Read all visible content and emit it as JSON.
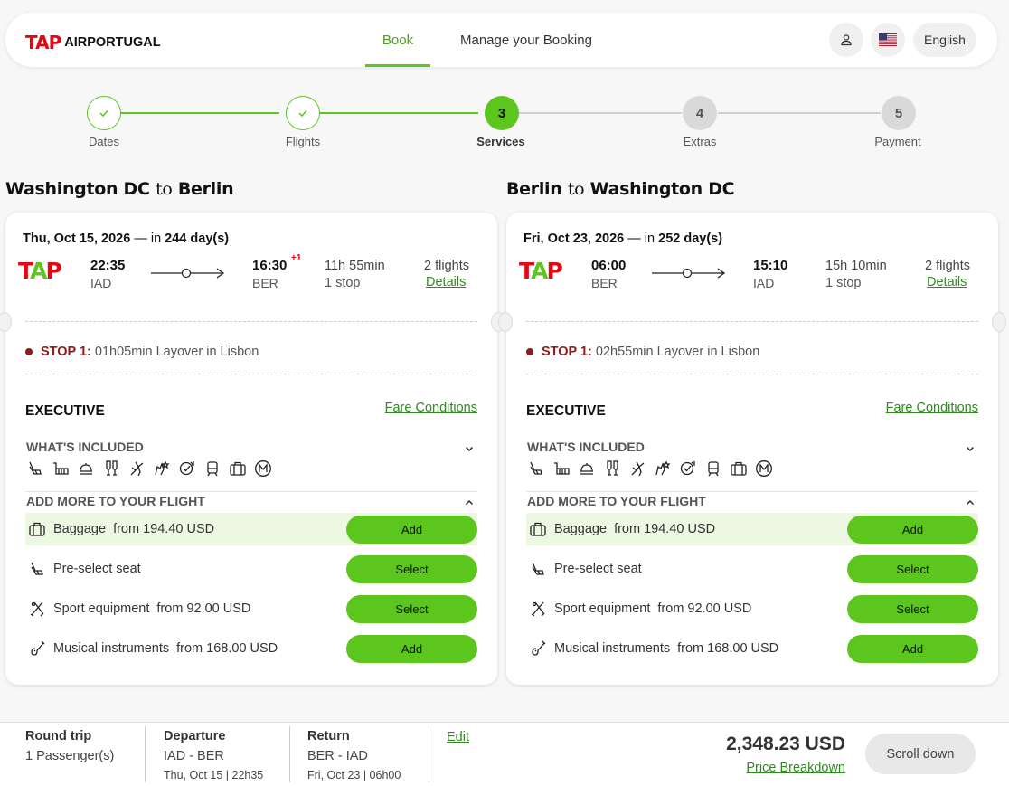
{
  "header": {
    "logo_mark": "TAP",
    "logo_text": "AIRPORTUGAL",
    "nav_book": "Book",
    "nav_manage": "Manage your Booking",
    "lang": "English"
  },
  "stepper": {
    "steps": [
      {
        "label": "Dates",
        "num": "",
        "state": "done"
      },
      {
        "label": "Flights",
        "num": "",
        "state": "done"
      },
      {
        "label": "Services",
        "num": "3",
        "state": "current"
      },
      {
        "label": "Extras",
        "num": "4",
        "state": "todo"
      },
      {
        "label": "Payment",
        "num": "5",
        "state": "todo"
      }
    ]
  },
  "outbound": {
    "from": "Washington DC",
    "to_word": "to",
    "to": "Berlin",
    "date": "Thu, Oct 15, 2026",
    "date_sep": "— in",
    "days": "244 day(s)",
    "dep_time": "22:35",
    "dep_code": "IAD",
    "arr_time": "16:30",
    "arr_plus": "+1",
    "arr_code": "BER",
    "duration": "11h 55min",
    "stops": "1 stop",
    "flights": "2 flights",
    "details": "Details",
    "stop_label": "STOP 1:",
    "stop_text": "01h05min Layover in Lisbon",
    "fare": "EXECUTIVE",
    "fare_conditions": "Fare Conditions",
    "included_label": "WHAT'S INCLUDED",
    "addmore_label": "ADD MORE TO YOUR FLIGHT",
    "addons": [
      {
        "name": "Baggage",
        "price": "from 194.40 USD",
        "button": "Add"
      },
      {
        "name": "Pre-select seat",
        "price": "",
        "button": "Select"
      },
      {
        "name": "Sport equipment",
        "price": "from 92.00 USD",
        "button": "Select"
      },
      {
        "name": "Musical instruments",
        "price": "from 168.00 USD",
        "button": "Add"
      }
    ]
  },
  "inbound": {
    "from": "Berlin",
    "to_word": "to",
    "to": "Washington DC",
    "date": "Fri, Oct 23, 2026",
    "date_sep": "— in",
    "days": "252 day(s)",
    "dep_time": "06:00",
    "dep_code": "BER",
    "arr_time": "15:10",
    "arr_code": "IAD",
    "duration": "15h 10min",
    "stops": "1 stop",
    "flights": "2 flights",
    "details": "Details",
    "stop_label": "STOP 1:",
    "stop_text": "02h55min Layover in Lisbon",
    "fare": "EXECUTIVE",
    "fare_conditions": "Fare Conditions",
    "included_label": "WHAT'S INCLUDED",
    "addmore_label": "ADD MORE TO YOUR FLIGHT",
    "addons": [
      {
        "name": "Baggage",
        "price": "from 194.40 USD",
        "button": "Add"
      },
      {
        "name": "Pre-select seat",
        "price": "",
        "button": "Select"
      },
      {
        "name": "Sport equipment",
        "price": "from 92.00 USD",
        "button": "Select"
      },
      {
        "name": "Musical instruments",
        "price": "from 168.00 USD",
        "button": "Add"
      }
    ]
  },
  "footer": {
    "trip_type": "Round trip",
    "passengers": "1 Passenger(s)",
    "departure_label": "Departure",
    "departure_route": "IAD - BER",
    "departure_when": "Thu, Oct 15 | 22h35",
    "return_label": "Return",
    "return_route": "BER - IAD",
    "return_when": "Fri, Oct 23 | 06h00",
    "edit": "Edit",
    "price": "2,348.23 USD",
    "price_breakdown": "Price Breakdown",
    "scroll_down": "Scroll down"
  },
  "colors": {
    "brand_green": "#5cc51e",
    "brand_red": "#e30613",
    "stop_red": "#8b1c1c"
  }
}
